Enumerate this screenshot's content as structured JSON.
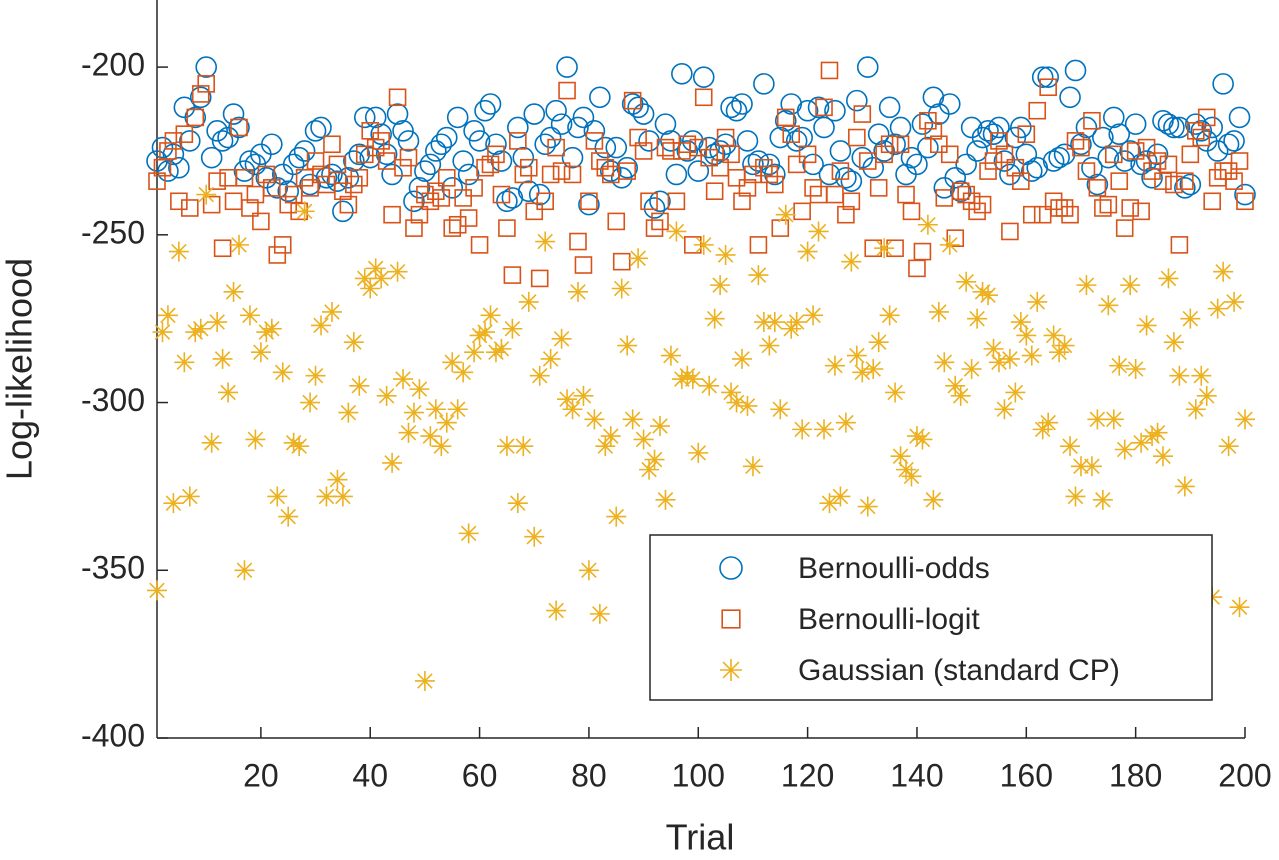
{
  "chart_data": {
    "type": "scatter",
    "xlabel": "Trial",
    "ylabel": "Log-likelihood",
    "xlim": [
      1,
      200
    ],
    "xticks": [
      20,
      40,
      60,
      80,
      100,
      120,
      140,
      160,
      180,
      200
    ],
    "ylim": [
      -400,
      -180
    ],
    "yticks": [
      -400,
      -350,
      -300,
      -250,
      -200
    ],
    "legend": "southeast",
    "grid": false,
    "x": [
      1,
      2,
      3,
      4,
      5,
      6,
      7,
      8,
      9,
      10,
      11,
      12,
      13,
      14,
      15,
      16,
      17,
      18,
      19,
      20,
      21,
      22,
      23,
      24,
      25,
      26,
      27,
      28,
      29,
      30,
      31,
      32,
      33,
      34,
      35,
      36,
      37,
      38,
      39,
      40,
      41,
      42,
      43,
      44,
      45,
      46,
      47,
      48,
      49,
      50,
      51,
      52,
      53,
      54,
      55,
      56,
      57,
      58,
      59,
      60,
      61,
      62,
      63,
      64,
      65,
      66,
      67,
      68,
      69,
      70,
      71,
      72,
      73,
      74,
      75,
      76,
      77,
      78,
      79,
      80,
      81,
      82,
      83,
      84,
      85,
      86,
      87,
      88,
      89,
      90,
      91,
      92,
      93,
      94,
      95,
      96,
      97,
      98,
      99,
      100,
      101,
      102,
      103,
      104,
      105,
      106,
      107,
      108,
      109,
      110,
      111,
      112,
      113,
      114,
      115,
      116,
      117,
      118,
      119,
      120,
      121,
      122,
      123,
      124,
      125,
      126,
      127,
      128,
      129,
      130,
      131,
      132,
      133,
      134,
      135,
      136,
      137,
      138,
      139,
      140,
      141,
      142,
      143,
      144,
      145,
      146,
      147,
      148,
      149,
      150,
      151,
      152,
      153,
      154,
      155,
      156,
      157,
      158,
      159,
      160,
      161,
      162,
      163,
      164,
      165,
      166,
      167,
      168,
      169,
      170,
      171,
      172,
      173,
      174,
      175,
      176,
      177,
      178,
      179,
      180,
      181,
      182,
      183,
      184,
      185,
      186,
      187,
      188,
      189,
      190,
      191,
      192,
      193,
      194,
      195,
      196,
      197,
      198,
      199,
      200
    ],
    "series": [
      {
        "name": "Bernoulli-odds",
        "color": "#0072bd",
        "marker": "circle",
        "values": [
          -228,
          -224,
          -231,
          -226,
          -230,
          -212,
          -222,
          -215,
          -209,
          -200,
          -227,
          -219,
          -222,
          -221,
          -214,
          -218,
          -231,
          -228,
          -229,
          -226,
          -233,
          -223,
          -236,
          -232,
          -237,
          -229,
          -227,
          -225,
          -235,
          -219,
          -218,
          -233,
          -232,
          -234,
          -243,
          -233,
          -228,
          -226,
          -215,
          -227,
          -215,
          -220,
          -226,
          -232,
          -214,
          -219,
          -222,
          -240,
          -236,
          -231,
          -229,
          -225,
          -223,
          -221,
          -236,
          -215,
          -228,
          -232,
          -219,
          -222,
          -213,
          -211,
          -223,
          -228,
          -240,
          -239,
          -218,
          -227,
          -237,
          -214,
          -238,
          -223,
          -221,
          -213,
          -217,
          -200,
          -227,
          -218,
          -215,
          -241,
          -219,
          -209,
          -224,
          -231,
          -224,
          -233,
          -230,
          -211,
          -212,
          -214,
          -222,
          -242,
          -240,
          -217,
          -222,
          -232,
          -202,
          -225,
          -222,
          -231,
          -203,
          -224,
          -226,
          -225,
          -223,
          -212,
          -213,
          -211,
          -222,
          -229,
          -228,
          -205,
          -229,
          -232,
          -221,
          -216,
          -211,
          -222,
          -221,
          -213,
          -229,
          -212,
          -218,
          -232,
          -213,
          -225,
          -233,
          -234,
          -210,
          -227,
          -200,
          -230,
          -220,
          -225,
          -212,
          -223,
          -218,
          -232,
          -227,
          -229,
          -217,
          -224,
          -209,
          -214,
          -236,
          -211,
          -233,
          -237,
          -229,
          -218,
          -225,
          -221,
          -219,
          -220,
          -218,
          -228,
          -232,
          -221,
          -218,
          -226,
          -231,
          -230,
          -203,
          -203,
          -228,
          -227,
          -226,
          -209,
          -201,
          -223,
          -218,
          -230,
          -235,
          -221,
          -227,
          -215,
          -220,
          -228,
          -225,
          -217,
          -229,
          -228,
          -233,
          -226,
          -216,
          -217,
          -218,
          -218,
          -236,
          -235,
          -217,
          -219,
          -222,
          -218,
          -225,
          -205,
          -223,
          -222,
          -215,
          -238
        ]
      },
      {
        "name": "Bernoulli-logit",
        "color": "#d95319",
        "marker": "square",
        "values": [
          -234,
          -230,
          -225,
          -222,
          -240,
          -220,
          -242,
          -215,
          -208,
          -205,
          -241,
          -234,
          -254,
          -233,
          -240,
          -218,
          -233,
          -242,
          -238,
          -246,
          -232,
          -236,
          -256,
          -253,
          -241,
          -238,
          -243,
          -233,
          -236,
          -228,
          -232,
          -235,
          -223,
          -229,
          -237,
          -241,
          -235,
          -233,
          -226,
          -219,
          -224,
          -222,
          -228,
          -244,
          -209,
          -230,
          -227,
          -248,
          -244,
          -238,
          -240,
          -237,
          -239,
          -233,
          -248,
          -247,
          -239,
          -245,
          -236,
          -253,
          -230,
          -229,
          -226,
          -238,
          -248,
          -262,
          -222,
          -232,
          -230,
          -243,
          -263,
          -240,
          -232,
          -224,
          -231,
          -207,
          -232,
          -252,
          -259,
          -240,
          -222,
          -228,
          -230,
          -232,
          -246,
          -258,
          -231,
          -210,
          -221,
          -225,
          -240,
          -248,
          -246,
          -224,
          -225,
          -240,
          -225,
          -223,
          -253,
          -224,
          -209,
          -227,
          -237,
          -230,
          -221,
          -226,
          -233,
          -240,
          -236,
          -232,
          -253,
          -230,
          -232,
          -235,
          -248,
          -215,
          -220,
          -229,
          -243,
          -226,
          -236,
          -238,
          -212,
          -201,
          -238,
          -231,
          -244,
          -240,
          -221,
          -214,
          -228,
          -254,
          -236,
          -226,
          -223,
          -254,
          -223,
          -238,
          -243,
          -260,
          -255,
          -216,
          -219,
          -223,
          -239,
          -226,
          -251,
          -237,
          -238,
          -240,
          -243,
          -241,
          -231,
          -228,
          -222,
          -226,
          -249,
          -230,
          -234,
          -220,
          -244,
          -213,
          -244,
          -206,
          -240,
          -242,
          -242,
          -244,
          -222,
          -224,
          -231,
          -216,
          -236,
          -242,
          -241,
          -226,
          -234,
          -248,
          -242,
          -225,
          -243,
          -224,
          -231,
          -228,
          -234,
          -229,
          -235,
          -253,
          -234,
          -226,
          -219,
          -221,
          -215,
          -240,
          -233,
          -231,
          -231,
          -234,
          -228,
          -240
        ]
      },
      {
        "name": "Gaussian (standard CP)",
        "color": "#edb120",
        "marker": "asterisk",
        "values": [
          -356,
          -279,
          -274,
          -330,
          -255,
          -288,
          -328,
          -279,
          -278,
          -238,
          -312,
          -276,
          -287,
          -297,
          -267,
          -253,
          -350,
          -274,
          -311,
          -285,
          -279,
          -278,
          -328,
          -291,
          -334,
          -312,
          -313,
          -243,
          -300,
          -292,
          -277,
          -328,
          -273,
          -323,
          -328,
          -303,
          -282,
          -295,
          -263,
          -266,
          -260,
          -263,
          -298,
          -318,
          -261,
          -293,
          -309,
          -303,
          -296,
          -383,
          -310,
          -302,
          -313,
          -306,
          -288,
          -302,
          -291,
          -339,
          -285,
          -280,
          -279,
          -274,
          -285,
          -284,
          -313,
          -278,
          -330,
          -313,
          -270,
          -340,
          -292,
          -252,
          -287,
          -362,
          -281,
          -299,
          -302,
          -267,
          -298,
          -350,
          -305,
          -363,
          -313,
          -310,
          -334,
          -266,
          -283,
          -305,
          -257,
          -311,
          -320,
          -317,
          -307,
          -329,
          -286,
          -249,
          -293,
          -292,
          -293,
          -315,
          -253,
          -295,
          -275,
          -265,
          -256,
          -297,
          -300,
          -287,
          -301,
          -319,
          -262,
          -276,
          -283,
          -276,
          -302,
          -244,
          -278,
          -276,
          -308,
          -255,
          -274,
          -249,
          -308,
          -330,
          -289,
          -328,
          -306,
          -258,
          -286,
          -291,
          -331,
          -290,
          -282,
          -254,
          -274,
          -297,
          -316,
          -320,
          -322,
          -310,
          -311,
          -247,
          -329,
          -273,
          -288,
          -253,
          -295,
          -298,
          -264,
          -290,
          -275,
          -267,
          -268,
          -284,
          -288,
          -302,
          -287,
          -297,
          -276,
          -280,
          -286,
          -270,
          -308,
          -306,
          -280,
          -285,
          -283,
          -313,
          -328,
          -319,
          -265,
          -319,
          -305,
          -329,
          -271,
          -305,
          -289,
          -314,
          -265,
          -290,
          -312,
          -277,
          -310,
          -309,
          -316,
          -263,
          -282,
          -292,
          -325,
          -275,
          -302,
          -292,
          -298,
          -358,
          -272,
          -261,
          -313,
          -270,
          -361,
          -305
        ]
      }
    ]
  }
}
